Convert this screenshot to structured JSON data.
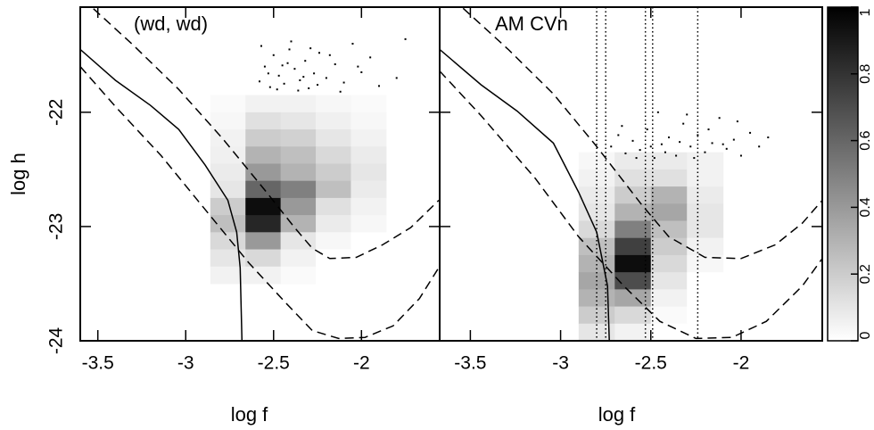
{
  "chart_data": [
    {
      "type": "heatmap",
      "label": "(wd, wd)",
      "xlabel": "log f",
      "ylabel": "log h",
      "xlim": [
        -3.6,
        -1.555
      ],
      "ylim": [
        -24,
        -21.08
      ],
      "xticks": [
        -3.5,
        -3,
        -2.5,
        -2
      ],
      "yticks": [
        -22,
        -23,
        -24
      ],
      "xbins": [
        -2.86,
        -2.66,
        -2.46,
        -2.26,
        -2.06,
        -1.86
      ],
      "ybins": [
        -21.85,
        -22.0,
        -22.15,
        -22.3,
        -22.45,
        -22.6,
        -22.75,
        -22.9,
        -23.05,
        -23.2,
        -23.35,
        -23.5
      ],
      "values": [
        [
          0.02,
          0.05,
          0.05,
          0.03,
          0.02
        ],
        [
          0.03,
          0.12,
          0.1,
          0.06,
          0.03
        ],
        [
          0.05,
          0.2,
          0.18,
          0.1,
          0.05
        ],
        [
          0.06,
          0.3,
          0.25,
          0.15,
          0.08
        ],
        [
          0.08,
          0.4,
          0.3,
          0.2,
          0.1
        ],
        [
          0.1,
          0.6,
          0.5,
          0.25,
          0.08
        ],
        [
          0.2,
          0.95,
          0.4,
          0.12,
          0.05
        ],
        [
          0.25,
          0.85,
          0.3,
          0.08,
          0.03
        ],
        [
          0.15,
          0.4,
          0.1,
          0.03,
          0
        ],
        [
          0.1,
          0.15,
          0.05,
          0,
          0
        ],
        [
          0.05,
          0.05,
          0.02,
          0,
          0
        ]
      ],
      "curves": [
        {
          "style": "solid",
          "x": [
            -3.6,
            -3.4,
            -3.2,
            -3.04,
            -2.89,
            -2.76,
            -2.71,
            -2.69,
            -2.68
          ],
          "y": [
            -21.45,
            -21.72,
            -21.94,
            -22.15,
            -22.46,
            -22.77,
            -23.05,
            -23.36,
            -24.0
          ]
        },
        {
          "style": "dashed",
          "x": [
            -3.525,
            -3.3,
            -3.04,
            -2.79,
            -2.54,
            -2.38,
            -2.28,
            -2.18,
            -2.03,
            -1.88,
            -1.72,
            -1.56
          ],
          "y": [
            -21.094,
            -21.41,
            -21.8,
            -22.23,
            -22.7,
            -23.01,
            -23.19,
            -23.28,
            -23.27,
            -23.16,
            -23.01,
            -22.77
          ]
        },
        {
          "style": "dashed",
          "x": [
            -3.6,
            -3.4,
            -3.14,
            -2.89,
            -2.64,
            -2.43,
            -2.28,
            -2.13,
            -1.98,
            -1.82,
            -1.67,
            -1.56
          ],
          "y": [
            -21.6,
            -21.95,
            -22.38,
            -22.85,
            -23.32,
            -23.67,
            -23.91,
            -23.98,
            -23.97,
            -23.87,
            -23.63,
            -23.36
          ]
        }
      ],
      "points": {
        "x": [
          -2.58,
          -2.55,
          -2.52,
          -2.5,
          -2.47,
          -2.44,
          -2.41,
          -2.38,
          -2.35,
          -2.32,
          -2.3,
          -2.27,
          -2.24,
          -2.2,
          -2.15,
          -2.1,
          -2.05,
          -2.0,
          -1.95,
          -1.9,
          -2.57,
          -2.48,
          -2.4,
          -2.33,
          -2.25,
          -2.18,
          -2.42,
          -2.36,
          -2.29,
          -1.8,
          -1.75,
          -2.53,
          -2.45,
          -2.12,
          -2.02
        ],
        "y": [
          -21.73,
          -21.6,
          -21.78,
          -21.5,
          -21.68,
          -21.75,
          -21.45,
          -21.62,
          -21.72,
          -21.55,
          -21.79,
          -21.66,
          -21.48,
          -21.7,
          -21.58,
          -21.74,
          -21.4,
          -21.65,
          -21.52,
          -21.77,
          -21.42,
          -21.8,
          -21.38,
          -21.69,
          -21.76,
          -21.5,
          -21.57,
          -21.81,
          -21.44,
          -21.7,
          -21.36,
          -21.66,
          -21.59,
          -21.82,
          -21.6
        ]
      }
    },
    {
      "type": "heatmap",
      "label": "AM CVn",
      "xlabel": "log f",
      "xlim": [
        -3.67,
        -1.55
      ],
      "ylim": [
        -24,
        -21.08
      ],
      "xticks": [
        -3.5,
        -3,
        -2.5,
        -2
      ],
      "xbins": [
        -2.9,
        -2.7,
        -2.5,
        -2.3,
        -2.1
      ],
      "ybins": [
        -22.35,
        -22.5,
        -22.65,
        -22.8,
        -22.95,
        -23.1,
        -23.25,
        -23.4,
        -23.55,
        -23.7,
        -23.85,
        -24.0
      ],
      "values": [
        [
          0.03,
          0.08,
          0.08,
          0.05
        ],
        [
          0.05,
          0.12,
          0.12,
          0.05
        ],
        [
          0.08,
          0.2,
          0.3,
          0.08
        ],
        [
          0.1,
          0.3,
          0.35,
          0.1
        ],
        [
          0.15,
          0.5,
          0.25,
          0.1
        ],
        [
          0.25,
          0.75,
          0.2,
          0.05
        ],
        [
          0.3,
          0.95,
          0.15,
          0.03
        ],
        [
          0.35,
          0.7,
          0.1,
          0
        ],
        [
          0.3,
          0.35,
          0.05,
          0
        ],
        [
          0.2,
          0.15,
          0.02,
          0
        ],
        [
          0.1,
          0.05,
          0,
          0
        ]
      ],
      "curves": [
        {
          "style": "solid",
          "x": [
            -3.67,
            -3.44,
            -3.24,
            -3.04,
            -2.9,
            -2.8,
            -2.74,
            -2.73
          ],
          "y": [
            -21.45,
            -21.76,
            -21.99,
            -22.27,
            -22.7,
            -23.05,
            -23.52,
            -24.0
          ]
        },
        {
          "style": "dashed",
          "x": [
            -3.54,
            -3.29,
            -3.04,
            -2.8,
            -2.55,
            -2.4,
            -2.2,
            -2.0,
            -1.81,
            -1.66,
            -1.55
          ],
          "y": [
            -21.09,
            -21.45,
            -21.84,
            -22.3,
            -22.81,
            -23.09,
            -23.27,
            -23.28,
            -23.16,
            -22.97,
            -22.77
          ]
        },
        {
          "style": "dashed",
          "x": [
            -3.67,
            -3.44,
            -3.14,
            -2.9,
            -2.65,
            -2.45,
            -2.25,
            -2.05,
            -1.86,
            -1.66,
            -1.55
          ],
          "y": [
            -21.64,
            -22.03,
            -22.58,
            -23.09,
            -23.52,
            -23.83,
            -23.98,
            -23.97,
            -23.83,
            -23.52,
            -23.28
          ]
        }
      ],
      "vlines": [
        -2.8,
        -2.75,
        -2.53,
        -2.49,
        -2.24
      ],
      "points": {
        "x": [
          -2.72,
          -2.68,
          -2.64,
          -2.6,
          -2.56,
          -2.52,
          -2.48,
          -2.44,
          -2.4,
          -2.36,
          -2.32,
          -2.28,
          -2.24,
          -2.2,
          -2.16,
          -2.12,
          -2.08,
          -2.04,
          -2.0,
          -1.95,
          -1.9,
          -2.66,
          -2.58,
          -2.5,
          -2.42,
          -2.34,
          -2.26,
          -2.18,
          -2.1,
          -2.02,
          -1.85,
          -2.46,
          -2.3
        ],
        "y": [
          -22.3,
          -22.2,
          -22.36,
          -22.25,
          -22.33,
          -22.15,
          -22.4,
          -22.28,
          -22.22,
          -22.38,
          -22.1,
          -22.3,
          -22.2,
          -22.35,
          -22.27,
          -22.05,
          -22.32,
          -22.24,
          -22.38,
          -22.18,
          -22.3,
          -22.12,
          -22.4,
          -22.3,
          -22.35,
          -22.26,
          -22.4,
          -22.15,
          -22.28,
          -22.08,
          -22.22,
          -22.0,
          -22.02
        ]
      }
    }
  ],
  "colorbar": {
    "ylim": [
      0,
      1
    ],
    "ticks": [
      0,
      0.2,
      0.4,
      0.6,
      0.8,
      1
    ]
  }
}
